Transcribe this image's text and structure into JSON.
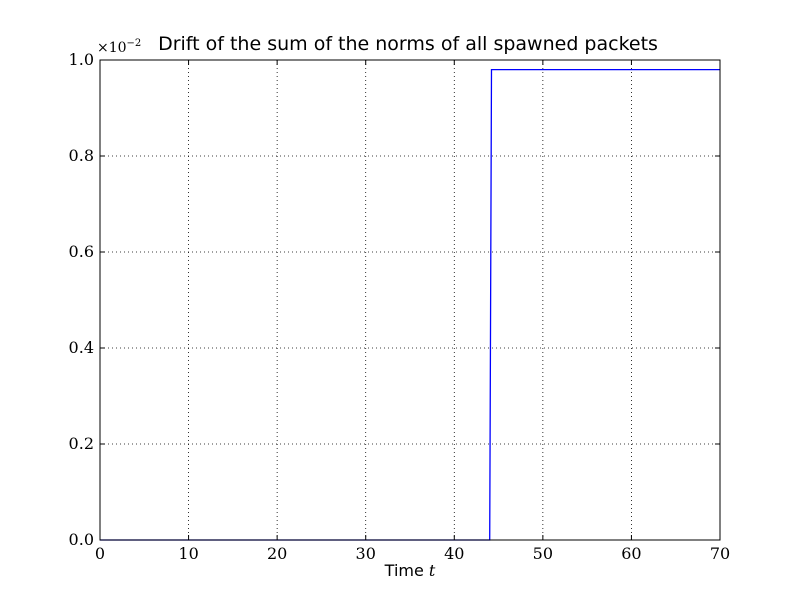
{
  "chart_data": {
    "type": "line",
    "title": "Drift of the sum of the norms of all spawned packets",
    "xlabel": "Time ",
    "xlabel_var": "t",
    "ylabel": "",
    "y_multiplier": "×10",
    "y_multiplier_exp": "−2",
    "xlim": [
      0,
      70
    ],
    "ylim": [
      0.0,
      1.0
    ],
    "x_ticks": [
      0,
      10,
      20,
      30,
      40,
      50,
      60,
      70
    ],
    "x_tick_labels": [
      "0",
      "10",
      "20",
      "30",
      "40",
      "50",
      "60",
      "70"
    ],
    "y_ticks": [
      0.0,
      0.2,
      0.4,
      0.6,
      0.8,
      1.0
    ],
    "y_tick_labels": [
      "0.0",
      "0.2",
      "0.4",
      "0.6",
      "0.8",
      "1.0"
    ],
    "grid": true,
    "grid_style": "dotted",
    "series": [
      {
        "color": "#0000ff",
        "x": [
          0,
          44.0,
          44.2,
          70
        ],
        "y": [
          0.0,
          0.0,
          0.98,
          0.98
        ]
      }
    ]
  }
}
